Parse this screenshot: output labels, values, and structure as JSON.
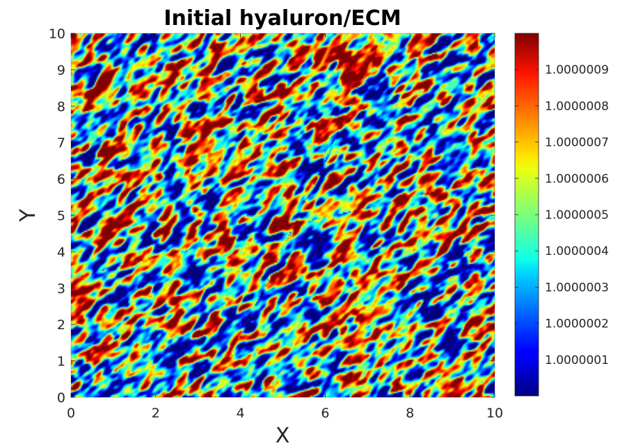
{
  "chart_data": {
    "type": "heatmap",
    "title": "Initial hyaluron/ECM",
    "xlabel": "X",
    "ylabel": "Y",
    "xlim": [
      0,
      10
    ],
    "ylim": [
      0,
      10
    ],
    "x_ticks": [
      "0",
      "2",
      "4",
      "6",
      "8",
      "10"
    ],
    "y_ticks": [
      "0",
      "1",
      "2",
      "3",
      "4",
      "5",
      "6",
      "7",
      "8",
      "9",
      "10"
    ],
    "colormap": "jet",
    "colorbar": {
      "min": 1.0,
      "max": 1.000001,
      "ticks": [
        "1.0000001",
        "1.0000002",
        "1.0000003",
        "1.0000004",
        "1.0000005",
        "1.0000006",
        "1.0000007",
        "1.0000008",
        "1.0000009"
      ]
    },
    "field_description": "random noise field, values between 1.0 and 1.000001, streaks oriented diagonally",
    "grid": false
  }
}
